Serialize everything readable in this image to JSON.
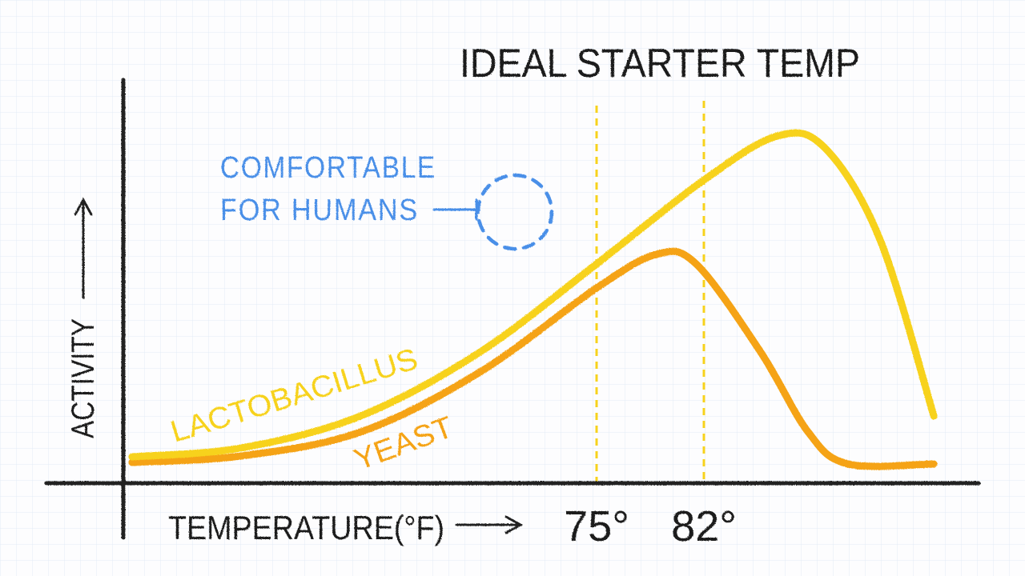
{
  "chart_data": {
    "type": "line",
    "title": "IDEAL STARTER TEMP",
    "xlabel": "TEMPERATURE(°F)",
    "ylabel": "ACTIVITY",
    "xlim": [
      44,
      100
    ],
    "ylim": [
      0,
      100
    ],
    "grid": true,
    "x_ticks": [
      {
        "value": 75,
        "label": "75°"
      },
      {
        "value": 82,
        "label": "82°"
      }
    ],
    "series": [
      {
        "name": "LACTOBACILLUS",
        "color": "#f7d21c",
        "points": [
          [
            44.7,
            6.6
          ],
          [
            51.8,
            8.8
          ],
          [
            59.6,
            16.8
          ],
          [
            67.4,
            32.8
          ],
          [
            75,
            54.8
          ],
          [
            82,
            75.8
          ],
          [
            86.8,
            86.8
          ],
          [
            89.9,
            83.8
          ],
          [
            93.5,
            60.8
          ],
          [
            97,
            16.8
          ]
        ]
      },
      {
        "name": "YEAST",
        "color": "#f5a312",
        "points": [
          [
            44.7,
            5.2
          ],
          [
            51.8,
            6.8
          ],
          [
            59.6,
            12.8
          ],
          [
            67.4,
            27.8
          ],
          [
            75,
            48.8
          ],
          [
            78.9,
            57.2
          ],
          [
            81.5,
            54.8
          ],
          [
            85.7,
            32.8
          ],
          [
            88.8,
            12.8
          ],
          [
            91.4,
            4.8
          ],
          [
            97,
            4.8
          ]
        ]
      }
    ],
    "annotations": {
      "comfort_line1": "COMFORTABLE",
      "comfort_line2": "FOR HUMANS",
      "comfort_color": "#4a8fe8",
      "ideal_range_color": "#f7d21c"
    }
  }
}
